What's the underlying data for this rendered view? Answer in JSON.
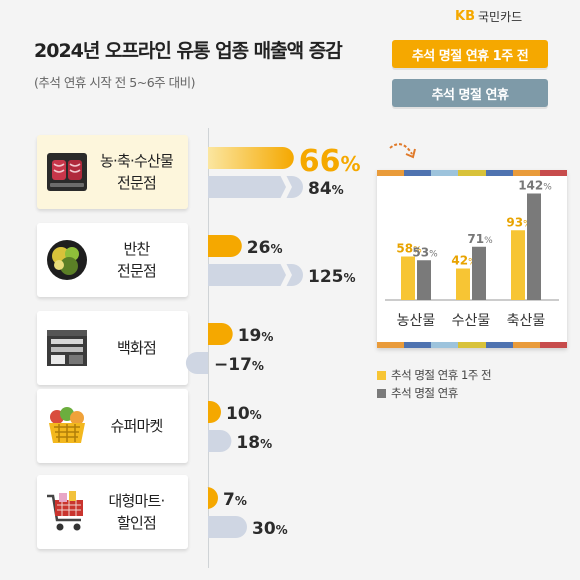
{
  "brand": {
    "logo_mark": "KB",
    "logo_text": "국민카드"
  },
  "header": {
    "title": "2024년 오프라인 유통 업종 매출액 증감",
    "subtitle": "(추석 연휴 시작 전 5~6주 대비)"
  },
  "legend": {
    "pre_holiday_label": "추석 명절 연휴 1주 전",
    "holiday_label": "추석 명절 연휴"
  },
  "colors": {
    "pre_holiday": "#f5a800",
    "holiday": "#cfd6e3",
    "detail_pre_holiday": "#f7c534",
    "detail_holiday": "#7a7a7a",
    "highlight_label": "#f5a800"
  },
  "chart_data": [
    {
      "type": "bar",
      "orientation": "horizontal",
      "categories": [
        "농·축·수산물 전문점",
        "반찬 전문점",
        "백화점",
        "슈퍼마켓",
        "대형마트· 할인점"
      ],
      "series": [
        {
          "name": "추석 명절 연휴 1주 전",
          "values": [
            66,
            26,
            19,
            10,
            7
          ]
        },
        {
          "name": "추석 명절 연휴",
          "values": [
            84,
            125,
            -17,
            18,
            30
          ]
        }
      ],
      "unit": "%"
    },
    {
      "type": "bar",
      "categories": [
        "농산물",
        "수산물",
        "축산물"
      ],
      "series": [
        {
          "name": "추석 명절 연휴 1주 전",
          "values": [
            58,
            42,
            93
          ]
        },
        {
          "name": "추석 명절 연휴",
          "values": [
            53,
            71,
            142
          ]
        }
      ],
      "unit": "%",
      "legend_position": "bottom"
    }
  ],
  "categories": [
    {
      "lines": [
        "농·축·수산물",
        "전문점"
      ],
      "icon": "meat-icon",
      "highlight": true
    },
    {
      "lines": [
        "반찬",
        "전문점"
      ],
      "icon": "side-dish-icon",
      "highlight": false
    },
    {
      "lines": [
        "백화점"
      ],
      "icon": "department-store-icon",
      "highlight": false
    },
    {
      "lines": [
        "슈퍼마켓"
      ],
      "icon": "grocery-basket-icon",
      "highlight": false
    },
    {
      "lines": [
        "대형마트·",
        "할인점"
      ],
      "icon": "shopping-cart-icon",
      "highlight": false
    }
  ]
}
